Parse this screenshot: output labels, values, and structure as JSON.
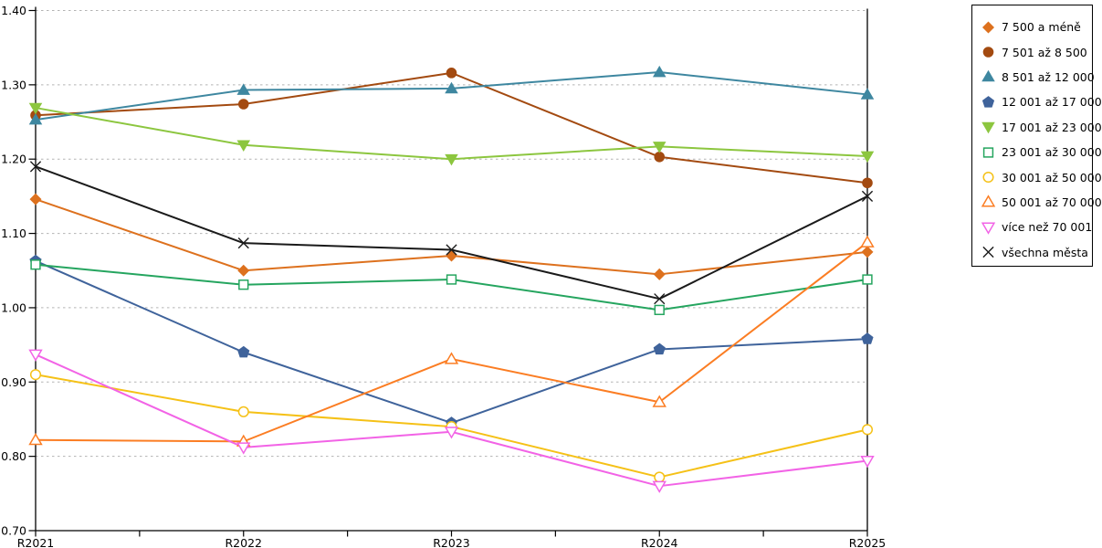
{
  "chart_data": {
    "type": "line",
    "title": "",
    "xlabel": "",
    "ylabel": "",
    "categories": [
      "R2021",
      "R2022",
      "R2023",
      "R2024",
      "R2025"
    ],
    "ylim": [
      0.7,
      1.4
    ],
    "ytick_step": 0.1,
    "yticks": [
      "1.40",
      "1.30",
      "1.20",
      "1.10",
      "1.00",
      "0.90",
      "0.80",
      "0.70"
    ],
    "grid": "horizontal-dashed",
    "grid_color": "#b3b3b3",
    "axis_color": "#000000",
    "legend_position": "outside-top-right",
    "series": [
      {
        "name": "7 500 a méně",
        "color": "#dd711e",
        "marker": "diamond",
        "fill": "filled",
        "values": [
          1.146,
          1.05,
          1.07,
          1.045,
          1.075
        ]
      },
      {
        "name": "7 501 až 8 500",
        "color": "#a34a10",
        "marker": "circle",
        "fill": "filled",
        "values": [
          1.259,
          1.274,
          1.316,
          1.203,
          1.168
        ]
      },
      {
        "name": "8 501 až 12 000",
        "color": "#3e87a0",
        "marker": "triangle-up",
        "fill": "filled",
        "values": [
          1.253,
          1.293,
          1.295,
          1.317,
          1.287
        ]
      },
      {
        "name": "12 001 až 17 000",
        "color": "#3f639b",
        "marker": "pentagon",
        "fill": "filled",
        "values": [
          1.063,
          0.94,
          0.845,
          0.944,
          0.958
        ]
      },
      {
        "name": "17 001 až 23 000",
        "color": "#8cc63f",
        "marker": "triangle-down",
        "fill": "filled",
        "values": [
          1.269,
          1.219,
          1.2,
          1.217,
          1.204
        ]
      },
      {
        "name": "23 001 až 30 000",
        "color": "#25a55f",
        "marker": "square",
        "fill": "open",
        "values": [
          1.058,
          1.031,
          1.038,
          0.997,
          1.038
        ]
      },
      {
        "name": "30 001 až 50 000",
        "color": "#f5c117",
        "marker": "circle",
        "fill": "open",
        "values": [
          0.91,
          0.86,
          0.84,
          0.772,
          0.836
        ]
      },
      {
        "name": "50 001 až 70 000",
        "color": "#fb7d23",
        "marker": "triangle-up",
        "fill": "open",
        "values": [
          0.822,
          0.82,
          0.931,
          0.873,
          1.088
        ]
      },
      {
        "name": "více než 70 001",
        "color": "#f263e6",
        "marker": "triangle-down",
        "fill": "open",
        "values": [
          0.937,
          0.812,
          0.833,
          0.76,
          0.794
        ]
      },
      {
        "name": "všechna města",
        "color": "#1a1a1a",
        "marker": "x",
        "fill": "line",
        "values": [
          1.19,
          1.087,
          1.078,
          1.012,
          1.15
        ]
      }
    ]
  }
}
